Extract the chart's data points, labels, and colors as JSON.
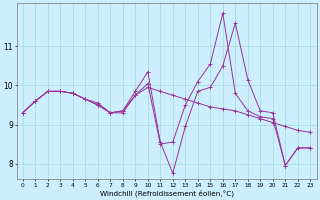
{
  "xlabel": "Windchill (Refroidissement éolien,°C)",
  "background_color": "#cceeff",
  "grid_color": "#aadddd",
  "line_color": "#993399",
  "x": [
    0,
    1,
    2,
    3,
    4,
    5,
    6,
    7,
    8,
    9,
    10,
    11,
    12,
    13,
    14,
    15,
    16,
    17,
    18,
    19,
    20,
    21,
    22,
    23
  ],
  "y_line1": [
    9.3,
    9.6,
    9.85,
    9.85,
    9.8,
    9.65,
    9.55,
    9.3,
    9.3,
    9.75,
    9.95,
    9.85,
    9.75,
    9.65,
    9.55,
    9.45,
    9.4,
    9.35,
    9.25,
    9.15,
    9.05,
    8.95,
    8.85,
    8.8
  ],
  "y_line2": [
    9.3,
    9.6,
    9.85,
    9.85,
    9.8,
    9.65,
    9.5,
    9.3,
    9.35,
    9.85,
    10.35,
    8.55,
    7.75,
    8.95,
    9.85,
    9.95,
    10.5,
    11.6,
    10.15,
    9.35,
    9.3,
    7.95,
    8.4,
    8.4
  ],
  "y_line3": [
    9.3,
    9.6,
    9.85,
    9.85,
    9.8,
    9.65,
    9.5,
    9.3,
    9.35,
    9.75,
    10.05,
    8.5,
    8.55,
    9.5,
    10.1,
    10.55,
    11.85,
    9.8,
    9.35,
    9.2,
    9.15,
    7.95,
    8.4,
    8.4
  ],
  "ylim": [
    7.6,
    12.1
  ],
  "yticks": [
    8,
    9,
    10,
    11
  ],
  "xtick_labels": [
    "0",
    "1",
    "2",
    "3",
    "4",
    "5",
    "6",
    "7",
    "8",
    "9",
    "10",
    "11",
    "12",
    "13",
    "14",
    "15",
    "16",
    "17",
    "18",
    "19",
    "20",
    "21",
    "22",
    "23"
  ]
}
